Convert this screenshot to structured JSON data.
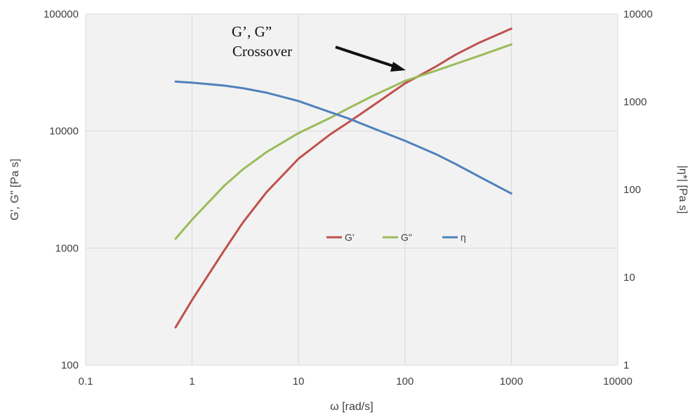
{
  "chart_data": {
    "type": "line",
    "xlabel": "ω [rad/s]",
    "ylabel": "G', G\" [Pa s]",
    "y2label": "|η*| [Pa s]",
    "xscale": "log",
    "yscale": "log",
    "y2scale": "log",
    "xlim": [
      0.1,
      10000
    ],
    "ylim": [
      100,
      100000
    ],
    "y2lim": [
      1,
      10000
    ],
    "x_ticks": [
      "0.1",
      "1",
      "10",
      "100",
      "1000",
      "10000"
    ],
    "y_ticks": [
      "100",
      "1000",
      "10000",
      "100000"
    ],
    "y2_ticks": [
      "1",
      "10",
      "100",
      "1000",
      "10000"
    ],
    "grid": true,
    "legend": "center",
    "annotation": {
      "line1": "G’, G”",
      "line2": "Crossover"
    },
    "series": [
      {
        "name": "G'",
        "axis": "left",
        "color": "#c0504d",
        "x": [
          0.7,
          1,
          2,
          3,
          5,
          10,
          20,
          30,
          50,
          100,
          130,
          200,
          300,
          500,
          1000
        ],
        "y": [
          210,
          360,
          950,
          1650,
          3000,
          5800,
          9400,
          12000,
          16500,
          25500,
          29000,
          36000,
          45000,
          57000,
          75000
        ]
      },
      {
        "name": "G\"",
        "axis": "left",
        "color": "#9bbb59",
        "x": [
          0.7,
          1,
          2,
          3,
          5,
          10,
          20,
          30,
          50,
          100,
          130,
          200,
          300,
          500,
          1000
        ],
        "y": [
          1200,
          1750,
          3400,
          4700,
          6600,
          9600,
          13000,
          15800,
          20000,
          26800,
          29000,
          33000,
          37500,
          44000,
          55000
        ]
      },
      {
        "name": "η",
        "axis": "right",
        "color": "#4f81bd",
        "x": [
          0.7,
          1,
          2,
          3,
          5,
          10,
          20,
          30,
          50,
          100,
          200,
          300,
          500,
          1000
        ],
        "y": [
          1700,
          1650,
          1530,
          1430,
          1270,
          1020,
          760,
          640,
          500,
          360,
          250,
          195,
          140,
          90
        ]
      }
    ]
  }
}
